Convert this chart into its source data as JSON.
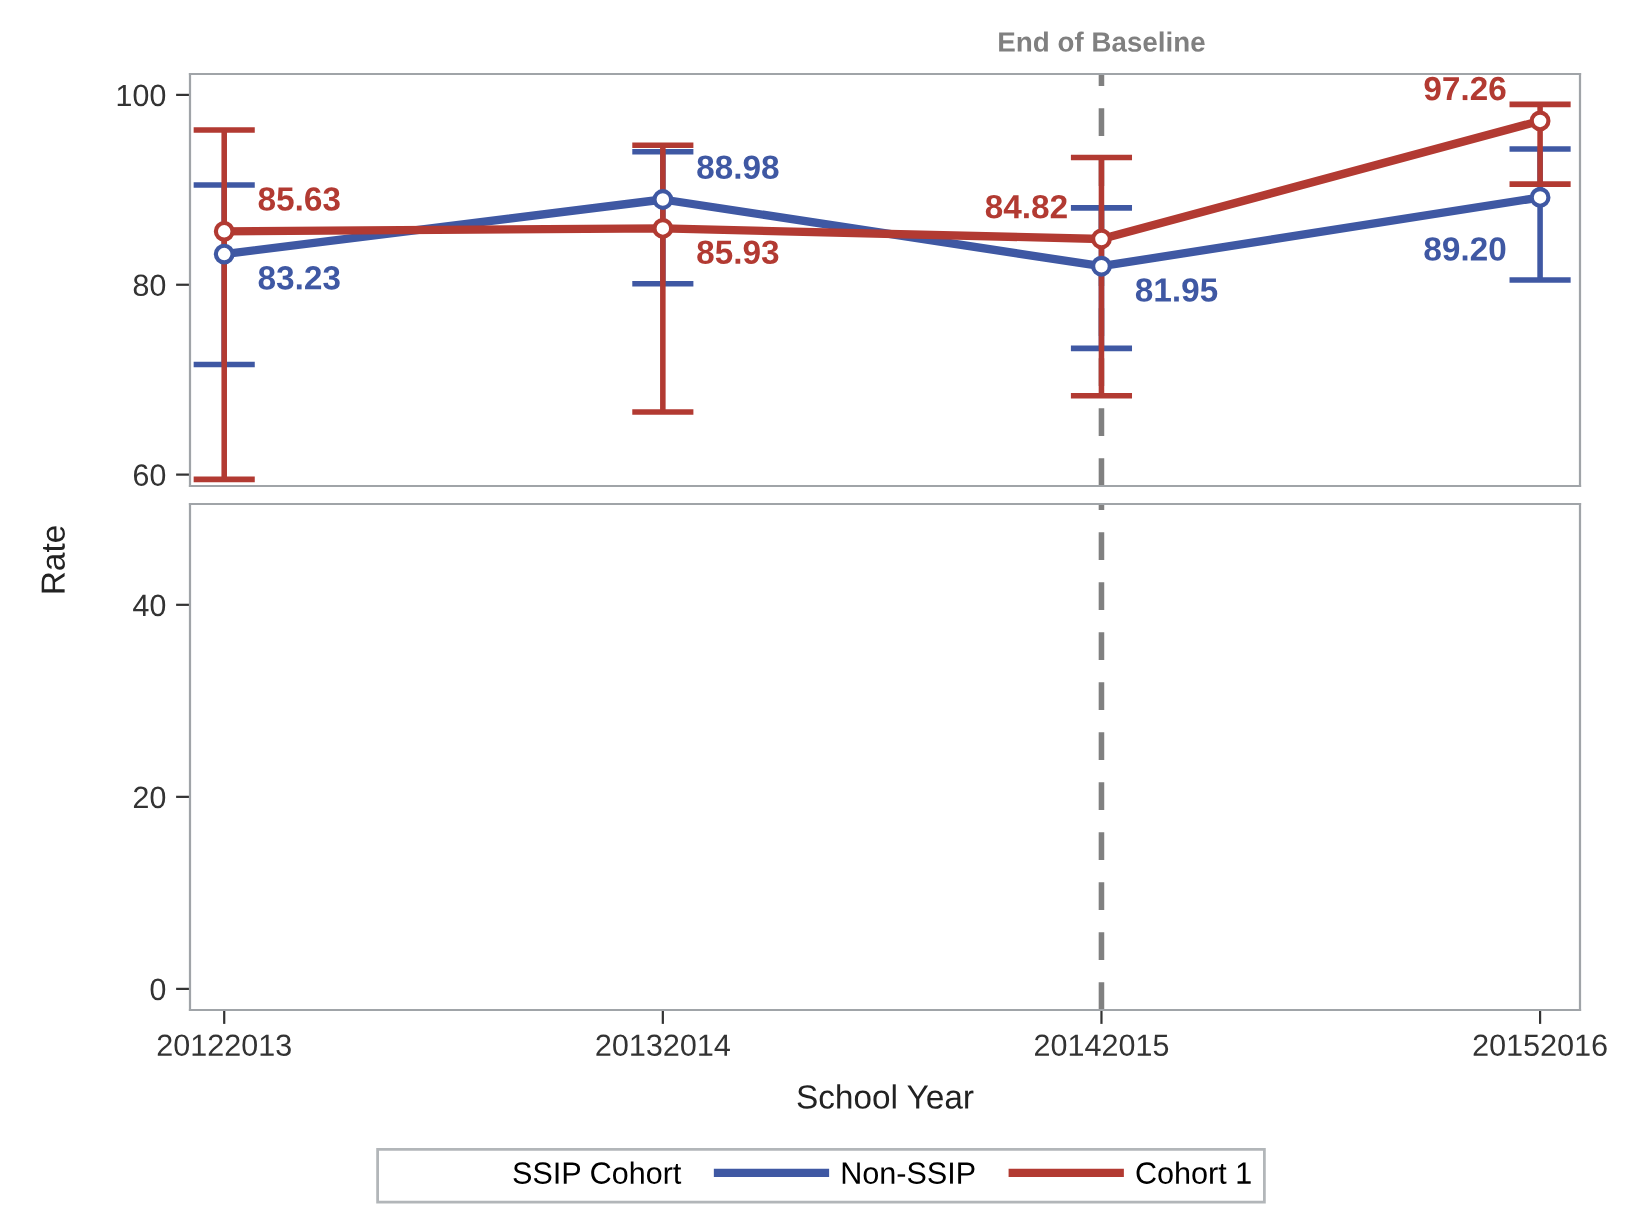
{
  "chart_data": [
    {
      "type": "line",
      "ylabel": "Rate",
      "categories": [
        "20122013",
        "20132014",
        "20142015",
        "20152016"
      ],
      "ylim": [
        58.8,
        102.2
      ],
      "yticks": [
        60,
        80,
        100
      ],
      "tick_labels": "y",
      "marker": "circle",
      "line_style": "solid",
      "grid": false,
      "legend": "bottom",
      "legend_title": "SSIP Cohort",
      "series": [
        {
          "name": "Non-SSIP",
          "color": "#3f58a3",
          "values": [
            83.23,
            88.98,
            81.95,
            89.2
          ],
          "value_labels": [
            "83.23",
            "88.98",
            "81.95",
            "89.20"
          ],
          "errors": [
            [
              71.6,
              90.5
            ],
            [
              80.1,
              94.0
            ],
            [
              73.3,
              88.1
            ],
            [
              80.5,
              94.3
            ]
          ]
        },
        {
          "name": "Cohort 1",
          "color": "#b23a32",
          "values": [
            85.63,
            85.93,
            84.82,
            97.26
          ],
          "value_labels": [
            "85.63",
            "85.93",
            "84.82",
            "97.26"
          ],
          "errors": [
            [
              59.5,
              96.3
            ],
            [
              66.6,
              94.7
            ],
            [
              68.3,
              93.4
            ],
            [
              90.6,
              99.0
            ]
          ]
        }
      ],
      "ref_lines": [
        {
          "axis": "x",
          "value": "20142015",
          "label": "End of Baseline",
          "color": "#808080",
          "line_style": "dashed"
        }
      ]
    },
    {
      "type": "line",
      "xlabel": "School Year",
      "categories": [
        "20122013",
        "20132014",
        "20142015",
        "20152016"
      ],
      "ylim": [
        -2.2,
        50.5
      ],
      "yticks": [
        0,
        20,
        40
      ],
      "grid": false,
      "ref_lines": [
        {
          "axis": "x",
          "value": "20142015",
          "color": "#808080",
          "line_style": "dashed"
        }
      ]
    }
  ]
}
